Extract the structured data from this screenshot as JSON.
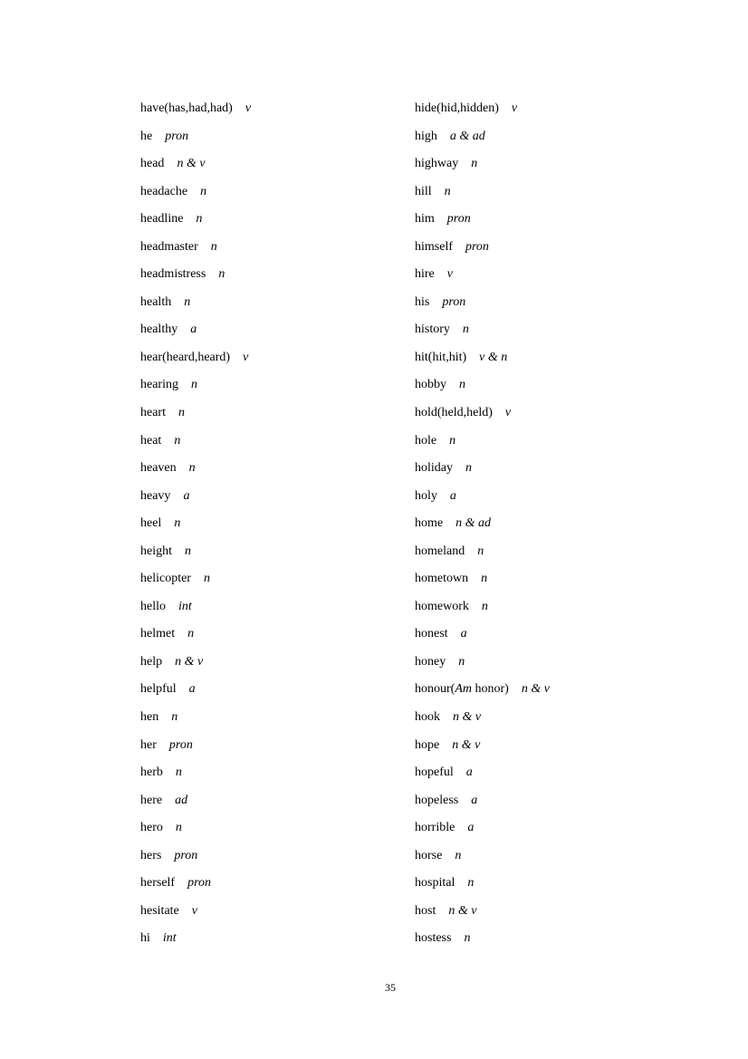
{
  "left_column": [
    {
      "word": "have(has,had,had)",
      "pos": "v"
    },
    {
      "word": "he",
      "pos": "pron"
    },
    {
      "word": "head",
      "pos": "n & v"
    },
    {
      "word": "headache",
      "pos": "n"
    },
    {
      "word": "headline",
      "pos": "n"
    },
    {
      "word": "headmaster",
      "pos": "n"
    },
    {
      "word": "headmistress",
      "pos": "n"
    },
    {
      "word": "health",
      "pos": "n"
    },
    {
      "word": "healthy",
      "pos": "a"
    },
    {
      "word": "hear(heard,heard)",
      "pos": "v"
    },
    {
      "word": "hearing",
      "pos": "n"
    },
    {
      "word": "heart",
      "pos": "n"
    },
    {
      "word": "heat",
      "pos": "n"
    },
    {
      "word": "heaven",
      "pos": "n"
    },
    {
      "word": "heavy",
      "pos": "a"
    },
    {
      "word": "heel",
      "pos": "n"
    },
    {
      "word": "height",
      "pos": "n"
    },
    {
      "word": "helicopter",
      "pos": "n"
    },
    {
      "word": "hello",
      "pos": "int"
    },
    {
      "word": "helmet",
      "pos": "n"
    },
    {
      "word": "help",
      "pos": "n & v"
    },
    {
      "word": "helpful",
      "pos": "a"
    },
    {
      "word": "hen",
      "pos": "n"
    },
    {
      "word": "her",
      "pos": "pron"
    },
    {
      "word": "herb",
      "pos": "n"
    },
    {
      "word": "here",
      "pos": "ad"
    },
    {
      "word": "hero",
      "pos": "n"
    },
    {
      "word": "hers",
      "pos": "pron"
    },
    {
      "word": "herself",
      "pos": "pron"
    },
    {
      "word": "hesitate",
      "pos": "v"
    },
    {
      "word": "hi",
      "pos": "int"
    }
  ],
  "right_column": [
    {
      "word": "hide(hid,hidden)",
      "pos": "v"
    },
    {
      "word": "high",
      "pos": "a & ad"
    },
    {
      "word": "highway",
      "pos": "n"
    },
    {
      "word": "hill",
      "pos": "n"
    },
    {
      "word": "him",
      "pos": "pron"
    },
    {
      "word": "himself",
      "pos": "pron"
    },
    {
      "word": "hire",
      "pos": "v"
    },
    {
      "word": "his",
      "pos": "pron"
    },
    {
      "word": "history",
      "pos": "n"
    },
    {
      "word": "hit(hit,hit)",
      "pos": "v & n"
    },
    {
      "word": "hobby",
      "pos": "n"
    },
    {
      "word": "hold(held,held)",
      "pos": "v"
    },
    {
      "word": "hole",
      "pos": "n"
    },
    {
      "word": "holiday",
      "pos": "n"
    },
    {
      "word": "holy",
      "pos": "a"
    },
    {
      "word": "home",
      "pos": "n & ad"
    },
    {
      "word": "homeland",
      "pos": "n"
    },
    {
      "word": "hometown",
      "pos": "n"
    },
    {
      "word": "homework",
      "pos": "n"
    },
    {
      "word": "honest",
      "pos": "a"
    },
    {
      "word": "honey",
      "pos": "n"
    },
    {
      "word": "honour(",
      "am": "Am",
      "word_rest": " honor)",
      "pos": "n & v"
    },
    {
      "word": "hook",
      "pos": "n & v"
    },
    {
      "word": "hope",
      "pos": "n & v"
    },
    {
      "word": "hopeful",
      "pos": "a"
    },
    {
      "word": "hopeless",
      "pos": "a"
    },
    {
      "word": "horrible",
      "pos": "a"
    },
    {
      "word": "horse",
      "pos": "n"
    },
    {
      "word": "hospital",
      "pos": "n"
    },
    {
      "word": "host",
      "pos": "n & v"
    },
    {
      "word": "hostess",
      "pos": "n"
    }
  ],
  "page_number": "35"
}
